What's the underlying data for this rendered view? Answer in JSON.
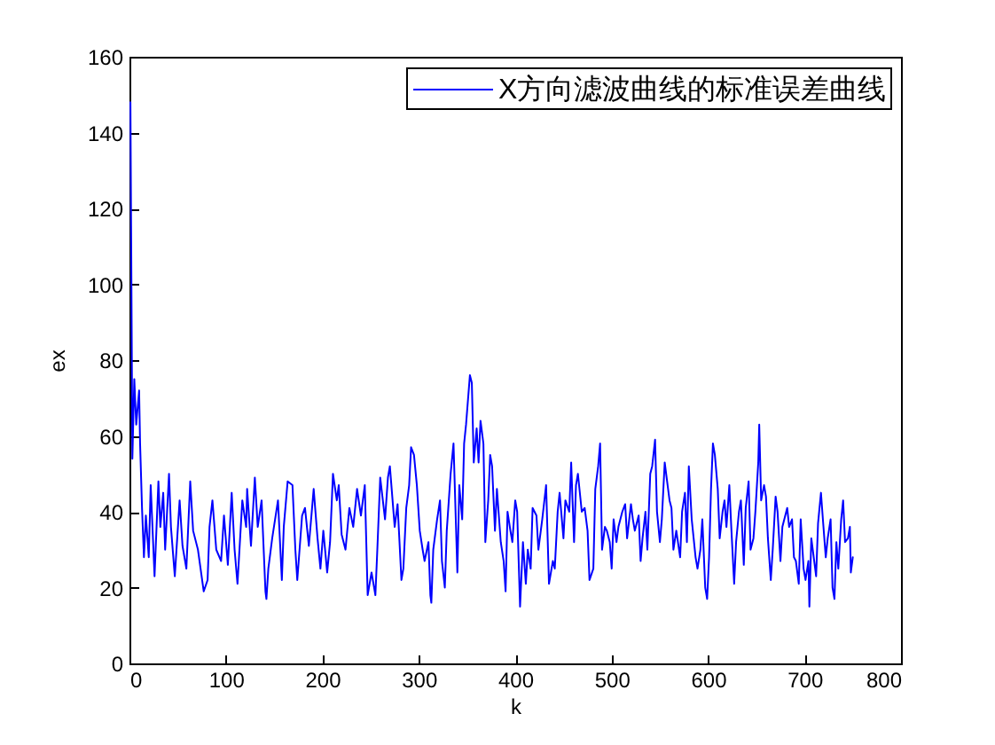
{
  "chart_data": {
    "type": "line",
    "xlabel": "k",
    "ylabel": "ex",
    "xlim": [
      0,
      800
    ],
    "ylim": [
      0,
      160
    ],
    "xticks": [
      0,
      100,
      200,
      300,
      400,
      500,
      600,
      700,
      800
    ],
    "yticks": [
      0,
      20,
      40,
      60,
      80,
      100,
      120,
      140,
      160
    ],
    "legend": "top right",
    "line_style": "solid",
    "x": [
      1,
      3,
      5,
      7,
      10,
      11,
      13,
      15,
      17,
      20,
      22,
      26,
      30,
      32,
      35,
      37,
      41,
      43,
      47,
      52,
      55,
      59,
      63,
      66,
      71,
      77,
      81,
      83,
      86,
      90,
      95,
      98,
      102,
      106,
      109,
      112,
      117,
      121,
      122,
      126,
      130,
      133,
      137,
      141,
      142,
      144,
      148,
      154,
      158,
      160,
      164,
      169,
      172,
      174,
      179,
      182,
      186,
      191,
      195,
      198,
      201,
      205,
      208,
      211,
      215,
      217,
      220,
      224,
      228,
      232,
      236,
      240,
      244,
      247,
      251,
      255,
      257,
      260,
      265,
      268,
      270,
      275,
      278,
      282,
      284,
      287,
      290,
      292,
      295,
      298,
      301,
      304,
      306,
      310,
      312,
      313,
      315,
      319,
      322,
      324,
      327,
      329,
      333,
      336,
      340,
      342,
      345,
      347,
      349,
      353,
      355,
      357,
      360,
      362,
      364,
      367,
      369,
      372,
      374,
      376,
      379,
      381,
      385,
      388,
      390,
      392,
      395,
      397,
      400,
      402,
      405,
      408,
      411,
      413,
      416,
      418,
      422,
      424,
      428,
      432,
      435,
      439,
      441,
      444,
      446,
      450,
      452,
      456,
      458,
      461,
      463,
      465,
      469,
      472,
      475,
      477,
      481,
      483,
      486,
      488,
      490,
      493,
      495,
      498,
      500,
      502,
      505,
      507,
      511,
      514,
      516,
      520,
      522,
      524,
      528,
      530,
      532,
      535,
      537,
      540,
      542,
      545,
      547,
      550,
      552,
      555,
      557,
      560,
      562,
      564,
      567,
      571,
      573,
      576,
      578,
      580,
      583,
      587,
      589,
      592,
      594,
      597,
      599,
      601,
      603,
      605,
      607,
      610,
      612,
      615,
      617,
      619,
      622,
      624,
      627,
      629,
      632,
      634,
      637,
      639,
      642,
      644,
      647,
      649,
      652,
      653,
      655,
      658,
      660,
      662,
      665,
      667,
      670,
      672,
      675,
      677,
      679,
      682,
      684,
      687,
      689,
      691,
      694,
      696,
      699,
      701,
      704,
      705,
      707,
      710,
      712,
      714,
      717,
      719,
      722,
      724,
      727,
      729,
      731,
      733,
      735,
      738,
      740,
      742,
      745,
      747,
      748,
      750
    ],
    "series": [
      {
        "name": "X方向滤波曲线的标准误差曲线",
        "color": "#0000ff",
        "values": [
          148,
          54,
          75,
          63,
          72,
          58,
          41,
          28,
          39,
          28,
          47,
          23,
          48,
          36,
          45,
          30,
          50,
          36,
          23,
          43,
          31,
          25,
          48,
          35,
          30,
          19,
          22,
          36,
          43,
          30,
          27,
          39,
          26,
          45,
          30,
          21,
          43,
          36,
          46,
          31,
          49,
          36,
          43,
          19,
          17,
          25,
          33,
          43,
          22,
          36,
          48,
          47,
          30,
          22,
          39,
          41,
          31,
          46,
          33,
          25,
          35,
          24,
          32,
          50,
          43,
          47,
          34,
          30,
          41,
          36,
          46,
          39,
          47,
          18,
          24,
          18,
          30,
          49,
          38,
          49,
          52,
          36,
          42,
          22,
          25,
          41,
          47,
          57,
          55,
          47,
          35,
          30,
          27,
          32,
          18,
          16,
          30,
          38,
          43,
          27,
          20,
          35,
          50,
          58,
          24,
          47,
          38,
          58,
          63,
          76,
          74,
          53,
          62,
          53,
          64,
          58,
          32,
          43,
          55,
          52,
          35,
          46,
          32,
          27,
          19,
          40,
          35,
          32,
          43,
          40,
          15,
          32,
          21,
          30,
          25,
          41,
          39,
          30,
          38,
          47,
          21,
          27,
          25,
          40,
          45,
          33,
          43,
          40,
          53,
          32,
          47,
          50,
          40,
          41,
          35,
          22,
          25,
          46,
          52,
          58,
          30,
          36,
          35,
          32,
          25,
          38,
          32,
          36,
          40,
          42,
          33,
          42,
          38,
          35,
          39,
          27,
          33,
          40,
          30,
          50,
          52,
          59,
          40,
          32,
          38,
          53,
          49,
          43,
          41,
          30,
          35,
          28,
          40,
          45,
          32,
          52,
          38,
          28,
          25,
          30,
          38,
          20,
          17,
          28,
          46,
          58,
          55,
          46,
          33,
          40,
          43,
          36,
          47,
          36,
          21,
          32,
          40,
          43,
          26,
          41,
          48,
          30,
          33,
          40,
          53,
          63,
          43,
          47,
          44,
          33,
          22,
          30,
          44,
          40,
          27,
          36,
          38,
          41,
          36,
          38,
          28,
          27,
          21,
          38,
          25,
          22,
          27,
          15,
          33,
          27,
          23,
          37,
          45,
          38,
          28,
          33,
          38,
          20,
          17,
          32,
          25,
          38,
          43,
          32,
          33,
          36,
          24,
          28
        ]
      }
    ]
  }
}
